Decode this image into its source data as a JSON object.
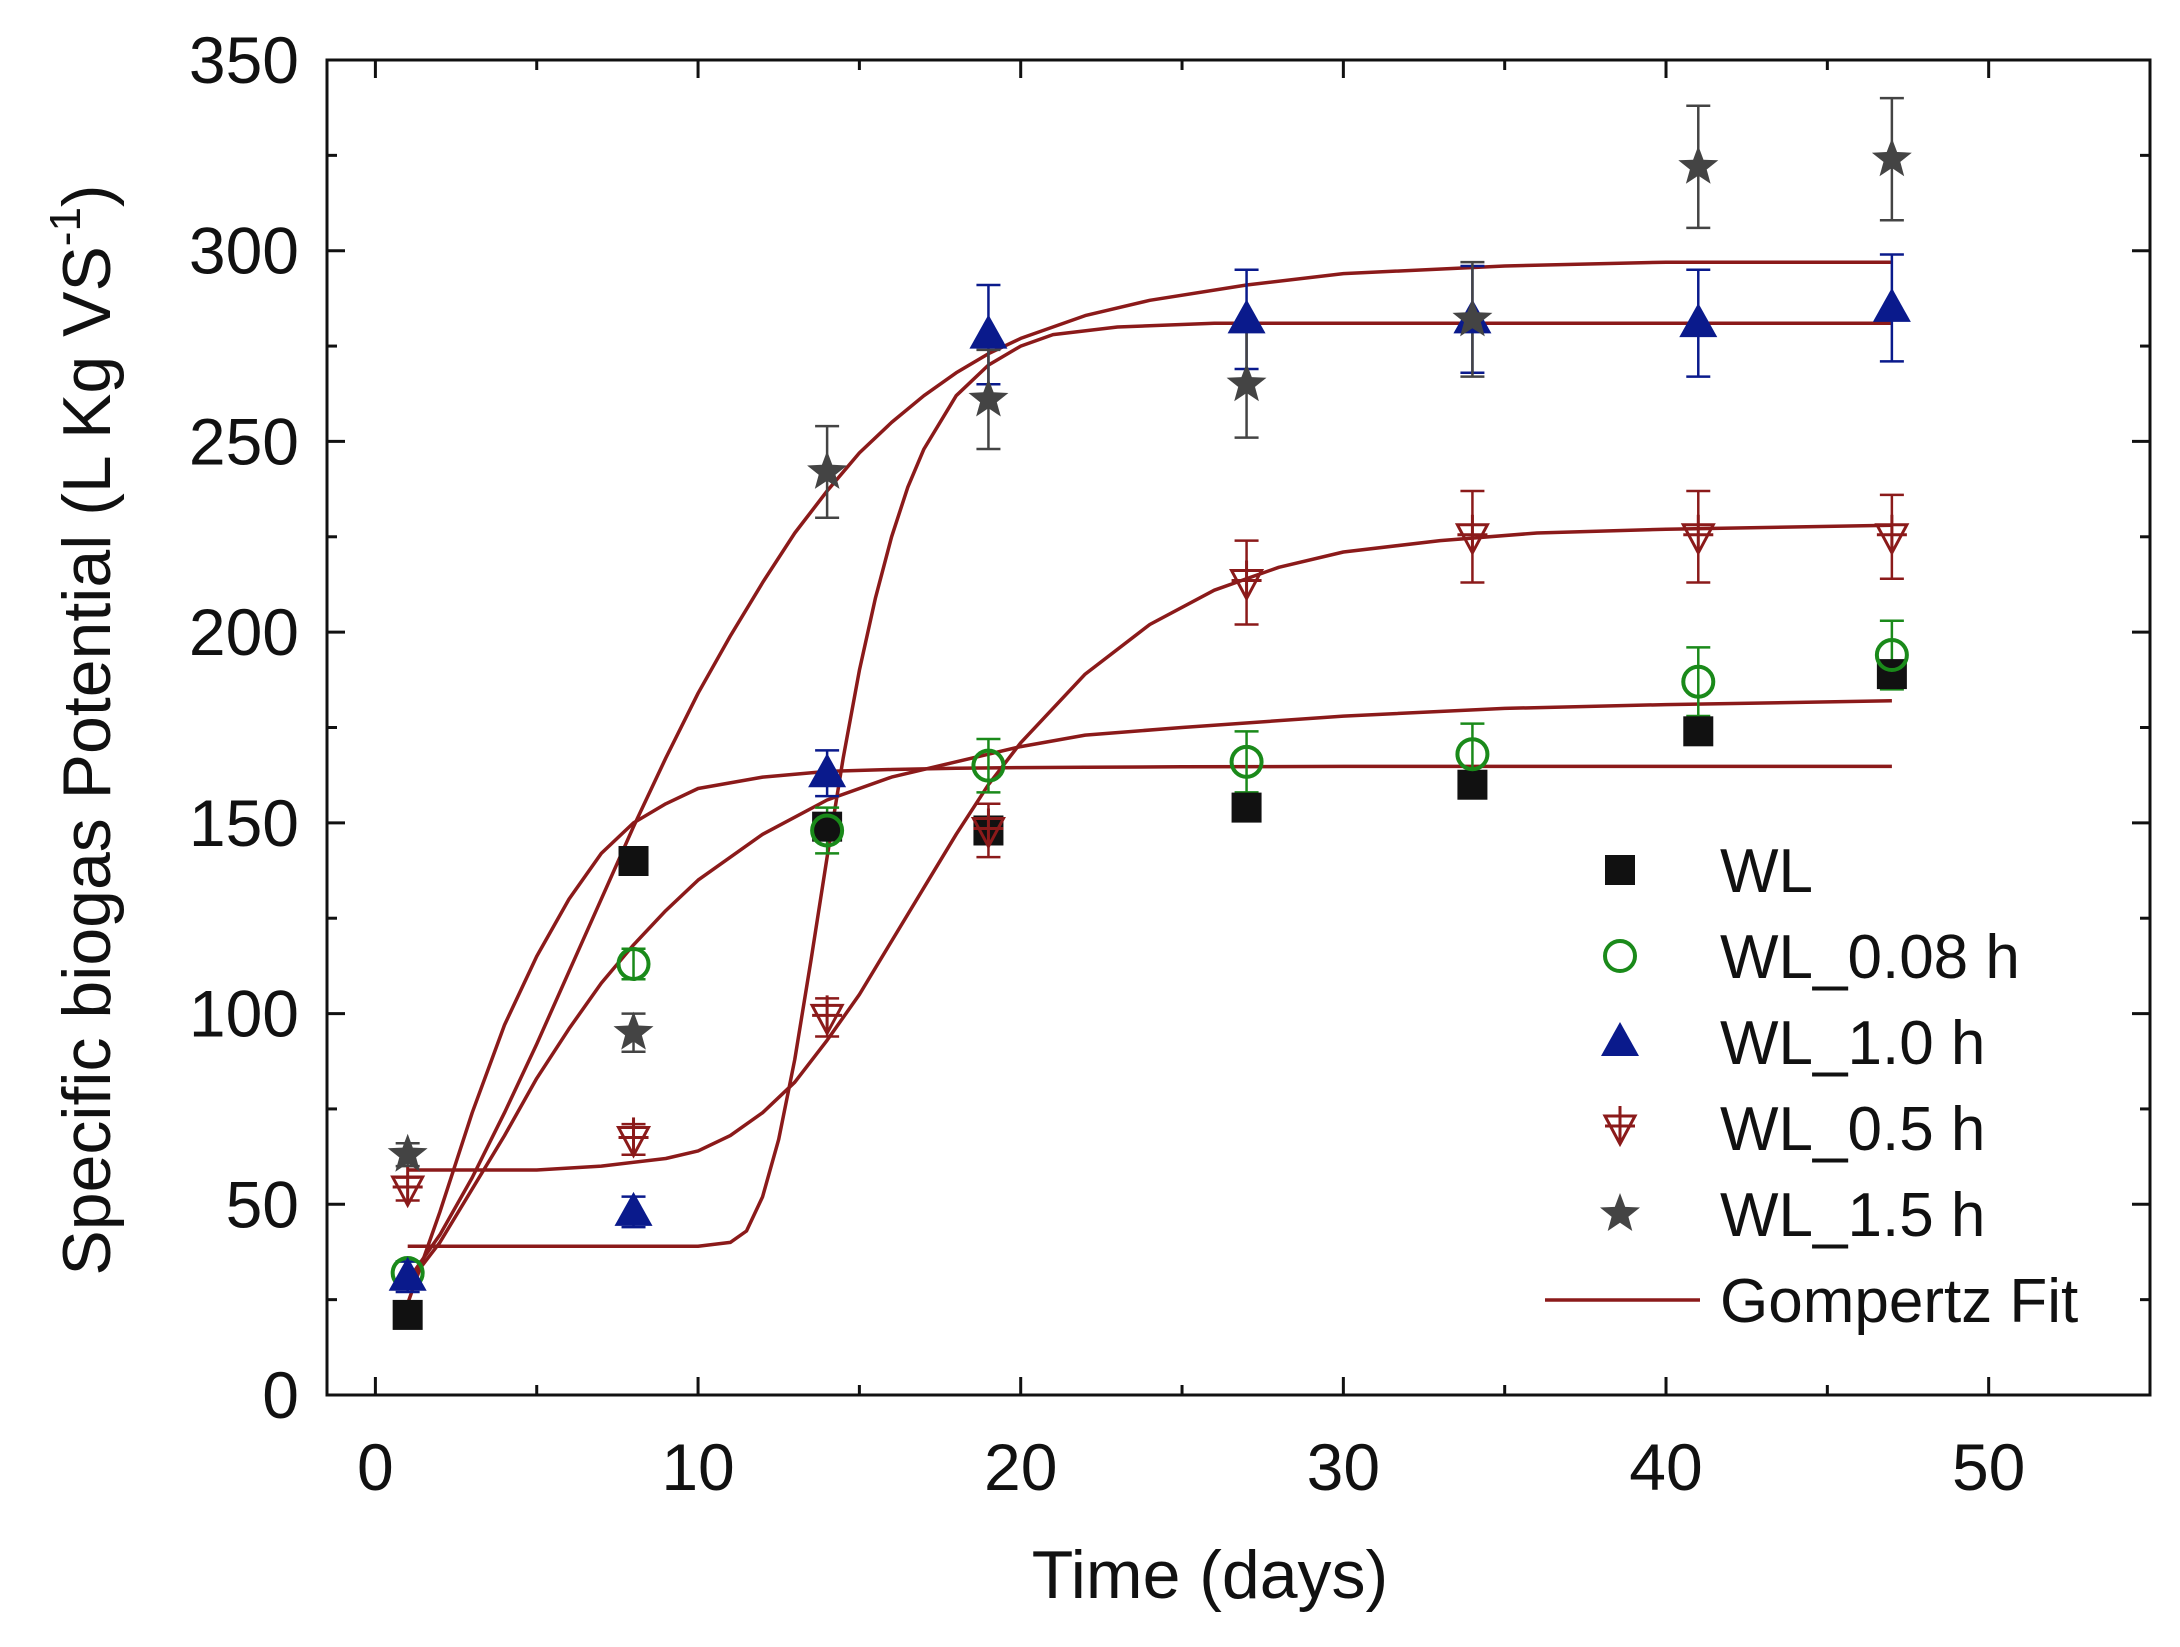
{
  "chart_data": {
    "type": "scatter",
    "title": "",
    "xlabel": "Time (days)",
    "ylabel": {
      "main": "Specific biogas Potential (L Kg VS",
      "superscript": "-1",
      "close": ")"
    },
    "xlim": [
      -1.5,
      55
    ],
    "ylim": [
      0,
      350
    ],
    "xticks": [
      0,
      10,
      20,
      30,
      40,
      50
    ],
    "yticks": [
      0,
      50,
      100,
      150,
      200,
      250,
      300,
      350
    ],
    "xtick_labels": [
      "0",
      "10",
      "20",
      "30",
      "40",
      "50"
    ],
    "ytick_labels": [
      "0",
      "50",
      "100",
      "150",
      "200",
      "250",
      "300",
      "350"
    ],
    "grid": false,
    "legend_position": "bottom-right",
    "series": [
      {
        "name": "WL",
        "marker": "square",
        "color": "#111111",
        "x": [
          1,
          8,
          14,
          19,
          27,
          34,
          41,
          47
        ],
        "y": [
          21,
          140,
          149,
          148,
          154,
          160,
          174,
          189
        ],
        "err": [
          0,
          0,
          0,
          0,
          0,
          0,
          0,
          0
        ]
      },
      {
        "name": "WL_0.08 h",
        "marker": "open-circle",
        "color": "#1a8a1a",
        "x": [
          1,
          8,
          14,
          19,
          27,
          34,
          41,
          47
        ],
        "y": [
          32,
          113,
          148,
          165,
          166,
          168,
          187,
          194
        ],
        "err": [
          3,
          4,
          6,
          7,
          8,
          8,
          9,
          9
        ]
      },
      {
        "name": "WL_1.0 h",
        "marker": "triangle-up",
        "color": "#0a1a8c",
        "x": [
          1,
          8,
          14,
          19,
          27,
          34,
          41,
          47
        ],
        "y": [
          31,
          48,
          163,
          278,
          282,
          282,
          281,
          285
        ],
        "err": [
          4,
          4,
          6,
          13,
          13,
          14,
          14,
          14
        ]
      },
      {
        "name": "WL_0.5 h",
        "marker": "open-triangle-down-cross",
        "color": "#8b1a1a",
        "x": [
          1,
          8,
          14,
          19,
          27,
          34,
          41,
          47
        ],
        "y": [
          54,
          67,
          99,
          148,
          213,
          225,
          225,
          225
        ],
        "err": [
          3,
          4,
          5,
          7,
          11,
          12,
          12,
          11
        ]
      },
      {
        "name": "WL_1.5 h",
        "marker": "star",
        "color": "#444444",
        "x": [
          1,
          8,
          14,
          19,
          27,
          34,
          41,
          47
        ],
        "y": [
          63,
          95,
          242,
          261,
          265,
          282,
          322,
          324
        ],
        "err": [
          3,
          5,
          12,
          13,
          14,
          15,
          16,
          16
        ]
      }
    ],
    "fits": {
      "name": "Gompertz Fit",
      "color": "#8b1a1a",
      "curves": [
        {
          "x": [
            1,
            2,
            3,
            4,
            5,
            6,
            7,
            8,
            9,
            10,
            12,
            14,
            16,
            18,
            20,
            22,
            25,
            30,
            35,
            40,
            47
          ],
          "y": [
            24,
            48,
            74,
            97,
            115,
            130,
            142,
            150,
            155,
            159,
            162,
            163.5,
            164,
            164.3,
            164.5,
            164.6,
            164.7,
            164.8,
            164.8,
            164.8,
            164.8
          ]
        },
        {
          "x": [
            1,
            2,
            3,
            4,
            5,
            6,
            7,
            8,
            9,
            10,
            12,
            14,
            16,
            18,
            20,
            22,
            25,
            30,
            35,
            40,
            47
          ],
          "y": [
            29,
            40,
            54,
            68,
            83,
            96,
            108,
            118,
            127,
            135,
            147,
            156,
            162,
            166,
            170,
            173,
            175,
            178,
            180,
            181,
            182
          ]
        },
        {
          "x": [
            1,
            4,
            7,
            10,
            11,
            11.5,
            12,
            12.5,
            13,
            13.5,
            14,
            14.5,
            15,
            15.5,
            16,
            16.5,
            17,
            18,
            19,
            20,
            21,
            23,
            26,
            30,
            35,
            40,
            47
          ],
          "y": [
            39,
            39,
            39,
            39,
            40,
            43,
            52,
            67,
            88,
            114,
            141,
            167,
            190,
            209,
            225,
            238,
            248,
            262,
            270,
            275,
            278,
            280,
            281,
            281,
            281,
            281,
            281
          ]
        },
        {
          "x": [
            1,
            3,
            5,
            7,
            9,
            10,
            11,
            12,
            13,
            14,
            15,
            16,
            17,
            18,
            19,
            20,
            22,
            24,
            26,
            28,
            30,
            33,
            36,
            40,
            47
          ],
          "y": [
            59,
            59,
            59,
            60,
            62,
            64,
            68,
            74,
            82,
            93,
            105,
            119,
            133,
            147,
            160,
            171,
            189,
            202,
            211,
            217,
            221,
            224,
            226,
            227,
            228
          ]
        },
        {
          "x": [
            1,
            2,
            3,
            4,
            5,
            6,
            7,
            8,
            9,
            10,
            11,
            12,
            13,
            14,
            15,
            16,
            17,
            18,
            19,
            20,
            22,
            24,
            27,
            30,
            35,
            40,
            47
          ],
          "y": [
            30,
            42,
            57,
            74,
            92,
            111,
            130,
            149,
            167,
            184,
            199,
            213,
            226,
            237,
            247,
            255,
            262,
            268,
            273,
            277,
            283,
            287,
            291,
            294,
            296,
            297,
            297
          ]
        }
      ]
    }
  }
}
